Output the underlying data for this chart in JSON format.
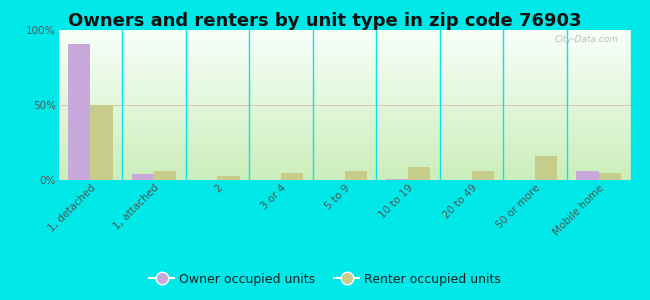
{
  "title": "Owners and renters by unit type in zip code 76903",
  "categories": [
    "1, detached",
    "1, attached",
    "2",
    "3 or 4",
    "5 to 9",
    "10 to 19",
    "20 to 49",
    "50 or more",
    "Mobile home"
  ],
  "owner_values": [
    91,
    4,
    0,
    0,
    0,
    1,
    0,
    0,
    6
  ],
  "renter_values": [
    50,
    6,
    3,
    5,
    6,
    9,
    6,
    16,
    5
  ],
  "owner_color": "#c9a8dc",
  "renter_color": "#c8cc8a",
  "background_color": "#00e8e8",
  "grad_top": "#f8fffa",
  "grad_bottom": "#cceebb",
  "ylim": [
    0,
    100
  ],
  "yticks": [
    0,
    50,
    100
  ],
  "ytick_labels": [
    "0%",
    "50%",
    "100%"
  ],
  "bar_width": 0.35,
  "legend_owner": "Owner occupied units",
  "legend_renter": "Renter occupied units",
  "title_fontsize": 13,
  "tick_fontsize": 7.5,
  "legend_fontsize": 9
}
